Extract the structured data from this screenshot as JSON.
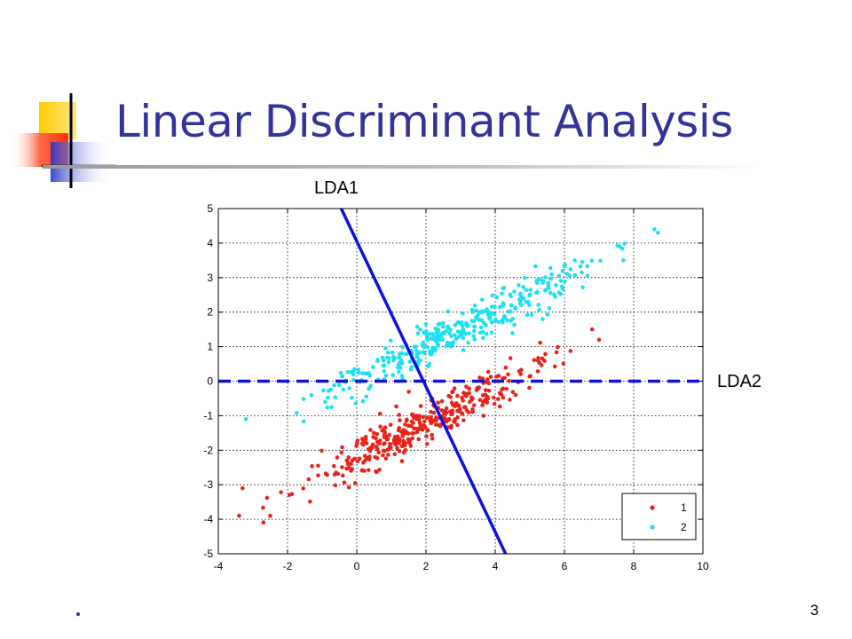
{
  "slide": {
    "title": "Linear Discriminant Analysis",
    "page_number": "3"
  },
  "colors": {
    "title": "#333399",
    "class1": "#e8241a",
    "class2": "#1ee0f0",
    "lda_lines": "#1010dd"
  },
  "chart_data": {
    "type": "scatter",
    "x_ticks": [
      -4,
      -2,
      0,
      2,
      4,
      6,
      8,
      10
    ],
    "y_ticks": [
      -5,
      -4,
      -3,
      -2,
      -1,
      0,
      1,
      2,
      3,
      4,
      5
    ],
    "xlim": [
      -4,
      10
    ],
    "ylim": [
      -5,
      5
    ],
    "grid": true,
    "legend_position": "bottom-right",
    "series": [
      {
        "name": "1",
        "color": "#e8241a",
        "trend": {
          "slope": 0.5,
          "intercept": -2.2,
          "x_range": [
            -3.4,
            7.0
          ],
          "spread": 0.3
        },
        "count": 360,
        "outliers": [
          [
            -3.4,
            -3.9
          ],
          [
            -3.3,
            -3.1
          ],
          [
            -2.5,
            -3.9
          ],
          [
            6.8,
            1.5
          ],
          [
            7.0,
            1.2
          ]
        ]
      },
      {
        "name": "2",
        "color": "#1ee0f0",
        "trend": {
          "slope": 0.5,
          "intercept": 0.0,
          "x_range": [
            -3.2,
            8.7
          ],
          "spread": 0.3
        },
        "count": 360,
        "outliers": [
          [
            -3.2,
            -1.1
          ],
          [
            8.6,
            4.4
          ],
          [
            8.7,
            4.3
          ],
          [
            7.6,
            3.9
          ],
          [
            7.7,
            3.5
          ],
          [
            6.3,
            3.5
          ]
        ]
      }
    ],
    "lines": [
      {
        "label": "LDA1",
        "style": "solid",
        "from": [
          -0.45,
          5.0
        ],
        "to": [
          4.3,
          -5.0
        ]
      },
      {
        "label": "LDA2",
        "style": "dashed",
        "from": [
          -4,
          0
        ],
        "to": [
          10,
          0
        ]
      }
    ]
  }
}
